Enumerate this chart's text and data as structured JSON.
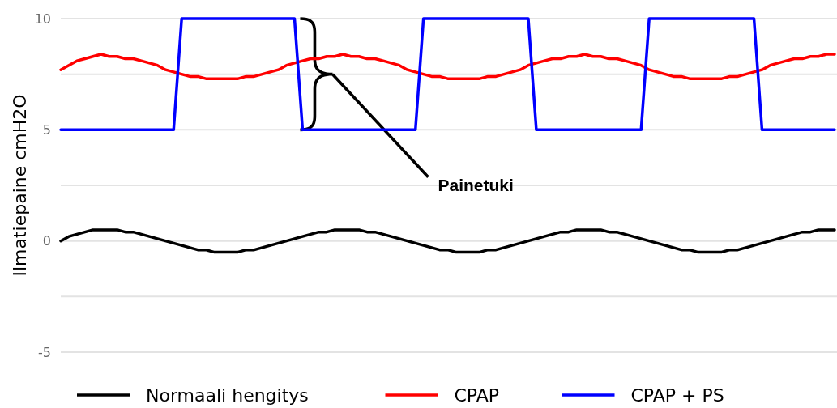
{
  "chart_data": {
    "type": "line",
    "ylabel": "Ilmatiepaine cmH2O",
    "categories": [
      null,
      null,
      null,
      null,
      null,
      null,
      null,
      null,
      null,
      null,
      null,
      null,
      null,
      null,
      null,
      null,
      null,
      null,
      null,
      null,
      null,
      null,
      null,
      null,
      null,
      null,
      null,
      null,
      null,
      null,
      null,
      null,
      null,
      null,
      null,
      null,
      null,
      null,
      null,
      null,
      null,
      null,
      null,
      null,
      null,
      null,
      null,
      null,
      null,
      null,
      null,
      null,
      null,
      null,
      null,
      null,
      null,
      null,
      null,
      null,
      null,
      null,
      null,
      null,
      null,
      null,
      null,
      null,
      null,
      null,
      null,
      null,
      null,
      null,
      null,
      null,
      null,
      null,
      null,
      null,
      null,
      null,
      null,
      null,
      null,
      null,
      null,
      null,
      null,
      null,
      null,
      null,
      null,
      null,
      null,
      null,
      null
    ],
    "series": [
      {
        "name": "Normaali hengitys",
        "color": "#000000",
        "values": [
          0,
          0.2,
          0.3,
          0.4,
          0.5,
          0.5,
          0.5,
          0.5,
          0.4,
          0.4,
          0.3,
          0.2,
          0.1,
          0,
          -0.1,
          -0.2,
          -0.3,
          -0.4,
          -0.4,
          -0.5,
          -0.5,
          -0.5,
          -0.5,
          -0.4,
          -0.4,
          -0.3,
          -0.2,
          -0.1,
          0,
          0.1,
          0.2,
          0.3,
          0.4,
          0.4,
          0.5,
          0.5,
          0.5,
          0.5,
          0.4,
          0.4,
          0.3,
          0.2,
          0.1,
          0,
          -0.1,
          -0.2,
          -0.3,
          -0.4,
          -0.4,
          -0.5,
          -0.5,
          -0.5,
          -0.5,
          -0.4,
          -0.4,
          -0.3,
          -0.2,
          -0.1,
          0,
          0.1,
          0.2,
          0.3,
          0.4,
          0.4,
          0.5,
          0.5,
          0.5,
          0.5,
          0.4,
          0.4,
          0.3,
          0.2,
          0.1,
          0,
          -0.1,
          -0.2,
          -0.3,
          -0.4,
          -0.4,
          -0.5,
          -0.5,
          -0.5,
          -0.5,
          -0.4,
          -0.4,
          -0.3,
          -0.2,
          -0.1,
          0,
          0.1,
          0.2,
          0.3,
          0.4,
          0.4,
          0.5,
          0.5,
          0.5
        ]
      },
      {
        "name": "CPAP",
        "color": "#ff0000",
        "values": [
          7.7,
          7.9,
          8.1,
          8.2,
          8.3,
          8.4,
          8.3,
          8.3,
          8.2,
          8.2,
          8.1,
          8.0,
          7.9,
          7.7,
          7.6,
          7.5,
          7.4,
          7.4,
          7.3,
          7.3,
          7.3,
          7.3,
          7.3,
          7.4,
          7.4,
          7.5,
          7.6,
          7.7,
          7.9,
          8.0,
          8.1,
          8.2,
          8.2,
          8.3,
          8.3,
          8.4,
          8.3,
          8.3,
          8.2,
          8.2,
          8.1,
          8.0,
          7.9,
          7.7,
          7.6,
          7.5,
          7.4,
          7.4,
          7.3,
          7.3,
          7.3,
          7.3,
          7.3,
          7.4,
          7.4,
          7.5,
          7.6,
          7.7,
          7.9,
          8.0,
          8.1,
          8.2,
          8.2,
          8.3,
          8.3,
          8.4,
          8.3,
          8.3,
          8.2,
          8.2,
          8.1,
          8.0,
          7.9,
          7.7,
          7.6,
          7.5,
          7.4,
          7.4,
          7.3,
          7.3,
          7.3,
          7.3,
          7.3,
          7.4,
          7.4,
          7.5,
          7.6,
          7.7,
          7.9,
          8.0,
          8.1,
          8.2,
          8.2,
          8.3,
          8.3,
          8.4,
          8.4
        ]
      },
      {
        "name": "CPAP + PS",
        "color": "#0000ff",
        "values": [
          5,
          5,
          5,
          5,
          5,
          5,
          5,
          5,
          5,
          5,
          5,
          5,
          5,
          5,
          5,
          10,
          10,
          10,
          10,
          10,
          10,
          10,
          10,
          10,
          10,
          10,
          10,
          10,
          10,
          10,
          5,
          5,
          5,
          5,
          5,
          5,
          5,
          5,
          5,
          5,
          5,
          5,
          5,
          5,
          5,
          10,
          10,
          10,
          10,
          10,
          10,
          10,
          10,
          10,
          10,
          10,
          10,
          10,
          10,
          5,
          5,
          5,
          5,
          5,
          5,
          5,
          5,
          5,
          5,
          5,
          5,
          5,
          5,
          10,
          10,
          10,
          10,
          10,
          10,
          10,
          10,
          10,
          10,
          10,
          10,
          10,
          10,
          5,
          5,
          5,
          5,
          5,
          5,
          5,
          5,
          5,
          5
        ]
      }
    ],
    "ylim": [
      -5,
      10
    ],
    "yticks": [
      -5,
      {
        "value": -2.5,
        "label": null
      },
      0,
      {
        "value": 2.5,
        "label": null
      },
      5,
      {
        "value": 7.5,
        "label": null
      },
      10
    ],
    "grid": "y",
    "legend": "bottom",
    "marker": "none",
    "line_style": "solid",
    "annotations": [
      "Painetuki"
    ]
  }
}
